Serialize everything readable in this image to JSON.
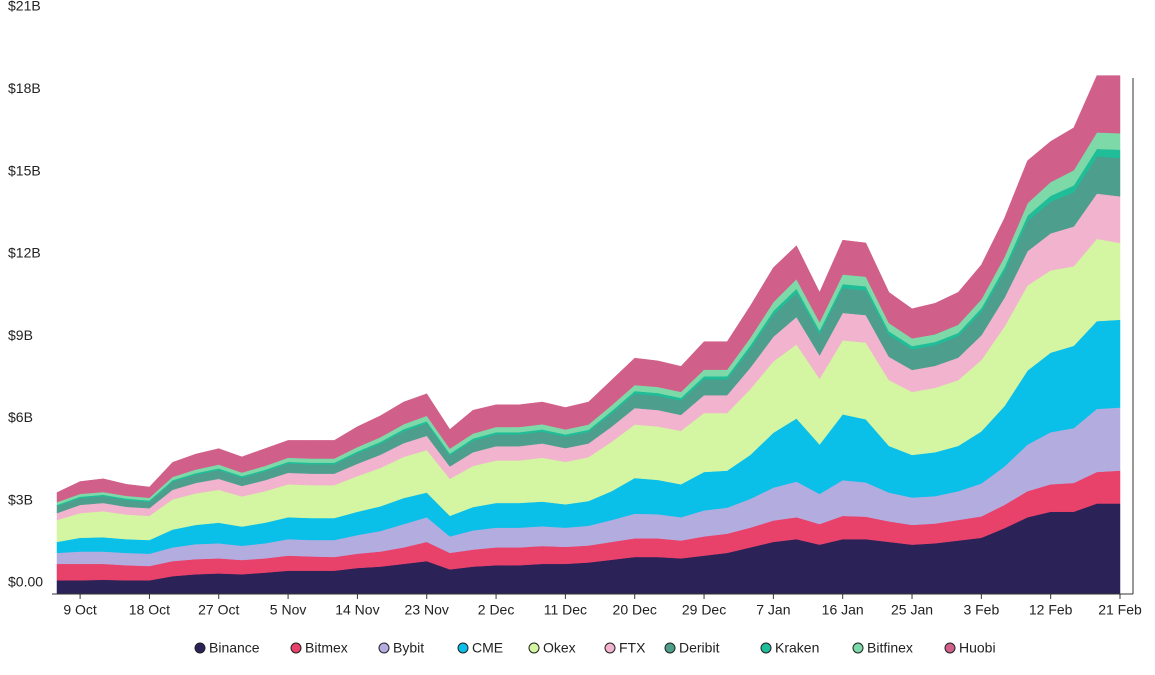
{
  "chart_data": {
    "type": "stacked-area",
    "categories": [
      null,
      "9 Oct",
      null,
      null,
      "18 Oct",
      null,
      null,
      "27 Oct",
      null,
      null,
      "5 Nov",
      null,
      null,
      "14 Nov",
      null,
      null,
      "23 Nov",
      null,
      null,
      "2 Dec",
      null,
      null,
      "11 Dec",
      null,
      null,
      "20 Dec",
      null,
      null,
      "29 Dec",
      null,
      null,
      "7 Jan",
      null,
      null,
      "16 Jan",
      null,
      null,
      "25 Jan",
      null,
      null,
      "3 Feb",
      null,
      null,
      "12 Feb",
      null,
      null,
      "21 Feb"
    ],
    "ylim": [
      0,
      21
    ],
    "yticks": [
      {
        "value": 0,
        "label": "$0.00"
      },
      {
        "value": 3,
        "label": "$3B"
      },
      {
        "value": 6,
        "label": "$6B"
      },
      {
        "value": 9,
        "label": "$9B"
      },
      {
        "value": 12,
        "label": "$12B"
      },
      {
        "value": 15,
        "label": "$15B"
      },
      {
        "value": 18,
        "label": "$18B"
      },
      {
        "value": 21,
        "label": "$21B"
      }
    ],
    "grid": false,
    "legend": "bottom",
    "series": [
      {
        "name": "Binance",
        "color": "#2b2257",
        "values": [
          0.5,
          0.5,
          0.52,
          0.5,
          0.5,
          0.65,
          0.72,
          0.75,
          0.72,
          0.78,
          0.85,
          0.85,
          0.85,
          0.95,
          1.0,
          1.1,
          1.2,
          0.9,
          1.0,
          1.05,
          1.05,
          1.1,
          1.1,
          1.15,
          1.25,
          1.35,
          1.35,
          1.3,
          1.4,
          1.5,
          1.7,
          1.9,
          2.0,
          1.8,
          2.0,
          2.0,
          1.9,
          1.8,
          1.85,
          1.95,
          2.05,
          2.4,
          2.8,
          3.0,
          3.0,
          3.3,
          3.3
        ]
      },
      {
        "name": "Bitmex",
        "color": "#e8416a",
        "values": [
          0.6,
          0.6,
          0.58,
          0.55,
          0.52,
          0.55,
          0.55,
          0.55,
          0.52,
          0.52,
          0.55,
          0.52,
          0.5,
          0.52,
          0.55,
          0.6,
          0.7,
          0.6,
          0.62,
          0.65,
          0.65,
          0.65,
          0.62,
          0.62,
          0.65,
          0.68,
          0.68,
          0.65,
          0.7,
          0.7,
          0.72,
          0.78,
          0.8,
          0.75,
          0.85,
          0.82,
          0.75,
          0.72,
          0.72,
          0.75,
          0.78,
          0.85,
          0.95,
          1.0,
          1.05,
          1.15,
          1.2
        ]
      },
      {
        "name": "Bybit",
        "color": "#b3acdf",
        "values": [
          0.4,
          0.45,
          0.45,
          0.45,
          0.45,
          0.5,
          0.55,
          0.55,
          0.52,
          0.55,
          0.6,
          0.6,
          0.62,
          0.68,
          0.75,
          0.85,
          0.9,
          0.6,
          0.7,
          0.72,
          0.72,
          0.72,
          0.7,
          0.72,
          0.8,
          0.9,
          0.88,
          0.85,
          0.95,
          0.95,
          1.05,
          1.2,
          1.3,
          1.1,
          1.3,
          1.25,
          1.05,
          1.0,
          1.0,
          1.05,
          1.2,
          1.4,
          1.7,
          1.9,
          2.0,
          2.3,
          2.3
        ]
      },
      {
        "name": "CME",
        "color": "#0abfe8",
        "values": [
          0.4,
          0.5,
          0.52,
          0.5,
          0.5,
          0.65,
          0.7,
          0.75,
          0.7,
          0.75,
          0.8,
          0.8,
          0.8,
          0.85,
          0.9,
          0.95,
          0.9,
          0.75,
          0.85,
          0.9,
          0.9,
          0.9,
          0.85,
          0.9,
          1.05,
          1.3,
          1.25,
          1.2,
          1.4,
          1.35,
          1.6,
          2.0,
          2.3,
          1.8,
          2.4,
          2.3,
          1.7,
          1.55,
          1.6,
          1.65,
          1.9,
          2.2,
          2.7,
          2.9,
          3.0,
          3.2,
          3.2
        ]
      },
      {
        "name": "Okex",
        "color": "#d4f5a2",
        "values": [
          0.8,
          0.9,
          0.95,
          0.9,
          0.88,
          1.1,
          1.15,
          1.2,
          1.1,
          1.15,
          1.2,
          1.2,
          1.2,
          1.3,
          1.4,
          1.5,
          1.55,
          1.35,
          1.5,
          1.55,
          1.55,
          1.6,
          1.55,
          1.6,
          1.8,
          1.95,
          1.95,
          1.95,
          2.15,
          2.1,
          2.4,
          2.6,
          2.7,
          2.4,
          2.7,
          2.8,
          2.4,
          2.3,
          2.35,
          2.4,
          2.6,
          2.9,
          3.1,
          3.0,
          2.9,
          3.0,
          2.8
        ]
      },
      {
        "name": "FTX",
        "color": "#f2b3cf",
        "values": [
          0.25,
          0.3,
          0.3,
          0.28,
          0.28,
          0.35,
          0.38,
          0.4,
          0.38,
          0.4,
          0.42,
          0.42,
          0.42,
          0.45,
          0.48,
          0.5,
          0.52,
          0.45,
          0.5,
          0.52,
          0.52,
          0.52,
          0.5,
          0.5,
          0.55,
          0.6,
          0.6,
          0.58,
          0.65,
          0.65,
          0.78,
          0.9,
          1.0,
          0.85,
          1.0,
          1.0,
          0.85,
          0.8,
          0.8,
          0.82,
          0.9,
          1.05,
          1.25,
          1.35,
          1.45,
          1.65,
          1.7
        ]
      },
      {
        "name": "Deribit",
        "color": "#4e9e8e",
        "values": [
          0.25,
          0.25,
          0.25,
          0.25,
          0.23,
          0.3,
          0.3,
          0.32,
          0.3,
          0.32,
          0.34,
          0.34,
          0.34,
          0.38,
          0.4,
          0.43,
          0.45,
          0.4,
          0.42,
          0.43,
          0.43,
          0.43,
          0.42,
          0.42,
          0.48,
          0.52,
          0.52,
          0.52,
          0.58,
          0.58,
          0.68,
          0.8,
          0.88,
          0.78,
          0.9,
          0.9,
          0.8,
          0.75,
          0.75,
          0.78,
          0.85,
          0.95,
          1.1,
          1.15,
          1.25,
          1.35,
          1.4
        ]
      },
      {
        "name": "Kraken",
        "color": "#1fbd98",
        "values": [
          0.05,
          0.05,
          0.05,
          0.05,
          0.05,
          0.05,
          0.06,
          0.06,
          0.06,
          0.06,
          0.06,
          0.06,
          0.06,
          0.07,
          0.07,
          0.08,
          0.08,
          0.07,
          0.08,
          0.08,
          0.08,
          0.08,
          0.08,
          0.08,
          0.09,
          0.1,
          0.1,
          0.1,
          0.11,
          0.11,
          0.13,
          0.14,
          0.15,
          0.13,
          0.15,
          0.15,
          0.13,
          0.12,
          0.12,
          0.12,
          0.14,
          0.16,
          0.2,
          0.22,
          0.25,
          0.28,
          0.3
        ]
      },
      {
        "name": "Bitfinex",
        "color": "#7dd9a8",
        "values": [
          0.1,
          0.1,
          0.1,
          0.1,
          0.1,
          0.12,
          0.13,
          0.14,
          0.13,
          0.14,
          0.15,
          0.15,
          0.15,
          0.16,
          0.17,
          0.18,
          0.2,
          0.18,
          0.18,
          0.19,
          0.19,
          0.19,
          0.18,
          0.19,
          0.21,
          0.22,
          0.22,
          0.22,
          0.24,
          0.24,
          0.28,
          0.32,
          0.35,
          0.3,
          0.35,
          0.35,
          0.3,
          0.28,
          0.28,
          0.3,
          0.32,
          0.38,
          0.45,
          0.5,
          0.55,
          0.6,
          0.6
        ]
      },
      {
        "name": "Huobi",
        "color": "#d06089",
        "values": [
          0.35,
          0.45,
          0.48,
          0.42,
          0.39,
          0.53,
          0.56,
          0.58,
          0.57,
          0.63,
          0.63,
          0.66,
          0.66,
          0.74,
          0.78,
          0.81,
          0.8,
          0.7,
          0.85,
          0.81,
          0.81,
          0.81,
          0.8,
          0.82,
          0.92,
          0.98,
          0.95,
          0.93,
          1.02,
          1.02,
          1.16,
          1.26,
          1.22,
          1.09,
          1.25,
          1.23,
          1.12,
          1.08,
          1.13,
          1.18,
          1.26,
          1.41,
          1.55,
          1.48,
          1.55,
          2.07,
          2.1
        ]
      }
    ]
  }
}
